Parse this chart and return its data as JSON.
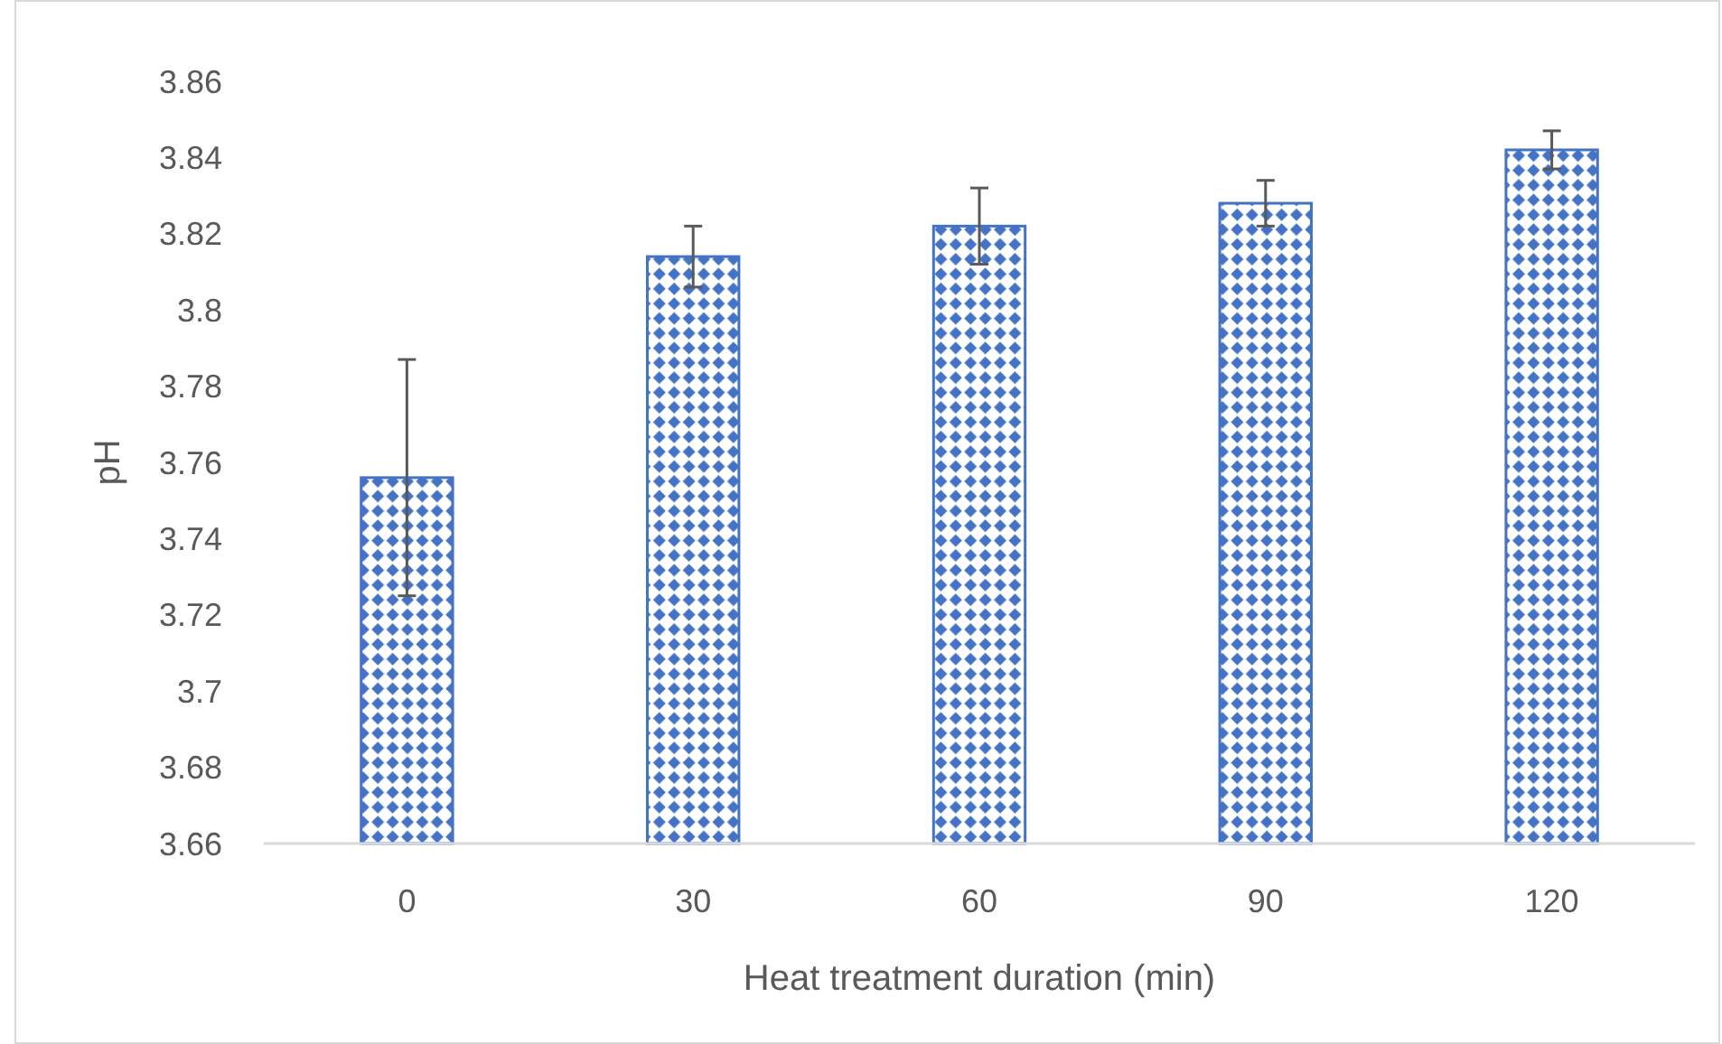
{
  "chart_data": {
    "type": "bar",
    "xlabel": "Heat treatment duration (min)",
    "ylabel": "pH",
    "categories": [
      "0",
      "30",
      "60",
      "90",
      "120"
    ],
    "values": [
      3.756,
      3.814,
      3.822,
      3.828,
      3.842
    ],
    "errors": [
      0.031,
      0.008,
      0.01,
      0.006,
      0.005
    ],
    "color": "#4472c4",
    "ylim": [
      3.66,
      3.86
    ],
    "yticks": [
      3.66,
      3.68,
      3.7,
      3.72,
      3.74,
      3.76,
      3.78,
      3.8,
      3.82,
      3.84,
      3.86
    ],
    "grid": false
  }
}
